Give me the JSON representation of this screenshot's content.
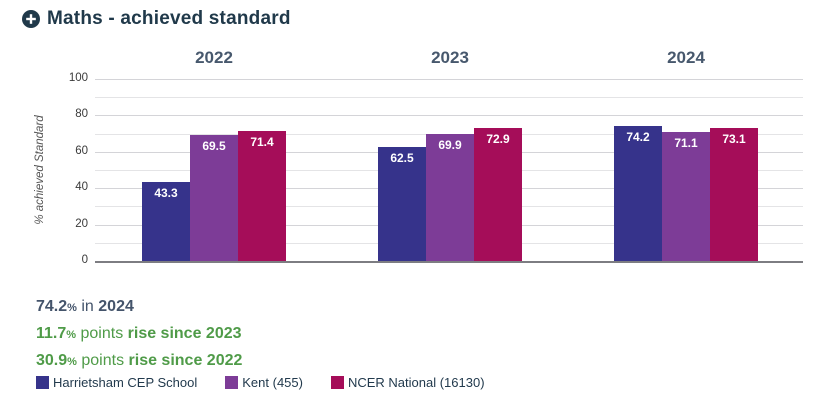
{
  "header": {
    "title": "Maths - achieved standard",
    "icon": "plus-circle-icon"
  },
  "chart_data": {
    "type": "bar",
    "categories": [
      "2022",
      "2023",
      "2024"
    ],
    "series": [
      {
        "name": "Harrietsham CEP School",
        "color": "#36338b",
        "values": [
          43.3,
          62.5,
          74.2
        ]
      },
      {
        "name": "Kent (455)",
        "color": "#7d3c97",
        "values": [
          69.5,
          69.9,
          71.1
        ]
      },
      {
        "name": "NCER National (16130)",
        "color": "#a50d59",
        "values": [
          71.4,
          72.9,
          73.1
        ]
      }
    ],
    "title": "Maths - achieved standard",
    "xlabel": "",
    "ylabel": "% achieved Standard",
    "ylim": [
      0,
      100
    ],
    "yticks": [
      0,
      20,
      40,
      60,
      80,
      100
    ],
    "minor_grid_step": 10,
    "grid": true,
    "legend_position": "bottom",
    "value_labels": "inside-top"
  },
  "stats": [
    {
      "value": "74.2",
      "unit": "%",
      "mid": " in ",
      "highlight": "2024",
      "color": "#44546b"
    },
    {
      "value": "11.7",
      "unit": "%",
      "mid": " points ",
      "highlight": "rise since 2023",
      "color": "#4f9b48"
    },
    {
      "value": "30.9",
      "unit": "%",
      "mid": " points ",
      "highlight": "rise since 2022",
      "color": "#4f9b48"
    }
  ]
}
